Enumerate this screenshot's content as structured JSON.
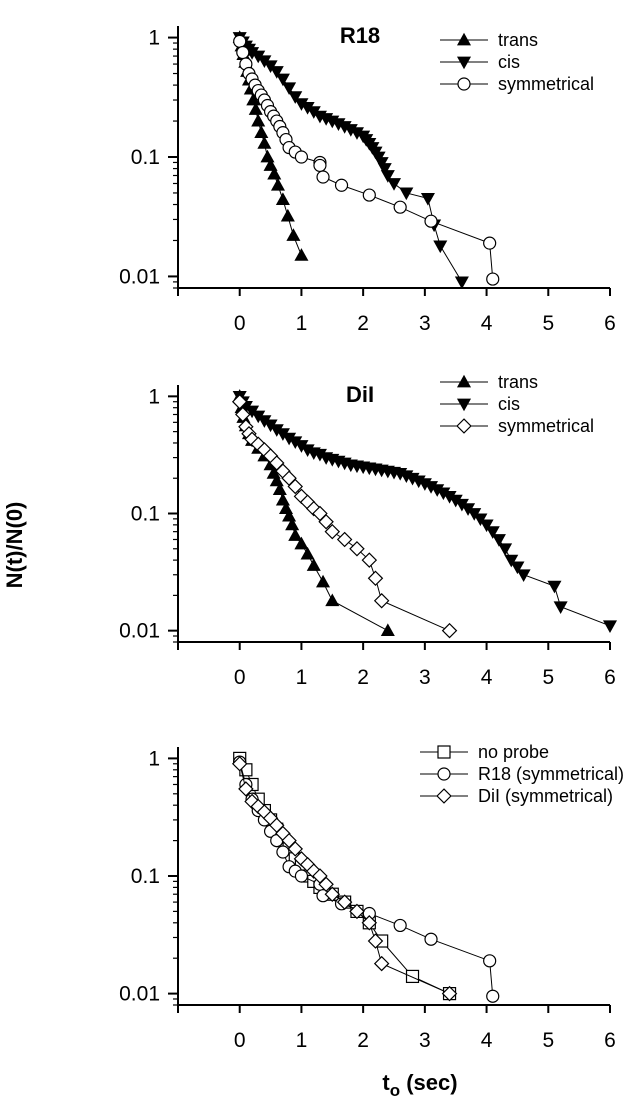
{
  "figure": {
    "ylabel": "N(t)/N(0)",
    "xlabel_main": "t",
    "xlabel_sub": "o",
    "xlabel_unit": " (sec)"
  },
  "chart_data": [
    {
      "type": "scatter",
      "panel_label": "R18",
      "ylabel": "N(t)/N(0)",
      "xlim": [
        -1,
        6
      ],
      "ylim": [
        0.008,
        1.25
      ],
      "yscale": "log",
      "x_ticks": [
        "0",
        "1",
        "2",
        "3",
        "4",
        "5",
        "6"
      ],
      "y_ticks": [
        "1",
        "0.1",
        "0.01"
      ],
      "grid": false,
      "legend": "top-right",
      "series": [
        {
          "name": "trans",
          "marker": "triangle-up",
          "color": "#000000",
          "points": [
            [
              0,
              1.0
            ],
            [
              0.03,
              0.85
            ],
            [
              0.06,
              0.72
            ],
            [
              0.09,
              0.62
            ],
            [
              0.12,
              0.52
            ],
            [
              0.15,
              0.44
            ],
            [
              0.18,
              0.37
            ],
            [
              0.22,
              0.3
            ],
            [
              0.26,
              0.25
            ],
            [
              0.3,
              0.2
            ],
            [
              0.35,
              0.16
            ],
            [
              0.4,
              0.13
            ],
            [
              0.45,
              0.1
            ],
            [
              0.5,
              0.085
            ],
            [
              0.56,
              0.072
            ],
            [
              0.62,
              0.058
            ],
            [
              0.7,
              0.044
            ],
            [
              0.78,
              0.032
            ],
            [
              0.87,
              0.022
            ],
            [
              1.0,
              0.015
            ]
          ]
        },
        {
          "name": "cis",
          "marker": "triangle-down",
          "color": "#000000",
          "points": [
            [
              0,
              1.0
            ],
            [
              0.05,
              0.92
            ],
            [
              0.1,
              0.85
            ],
            [
              0.15,
              0.8
            ],
            [
              0.2,
              0.75
            ],
            [
              0.3,
              0.7
            ],
            [
              0.4,
              0.64
            ],
            [
              0.5,
              0.58
            ],
            [
              0.6,
              0.52
            ],
            [
              0.7,
              0.45
            ],
            [
              0.8,
              0.38
            ],
            [
              0.9,
              0.32
            ],
            [
              1.0,
              0.28
            ],
            [
              1.1,
              0.26
            ],
            [
              1.2,
              0.24
            ],
            [
              1.3,
              0.22
            ],
            [
              1.4,
              0.21
            ],
            [
              1.5,
              0.2
            ],
            [
              1.6,
              0.19
            ],
            [
              1.7,
              0.18
            ],
            [
              1.8,
              0.17
            ],
            [
              1.9,
              0.16
            ],
            [
              2.0,
              0.15
            ],
            [
              2.05,
              0.14
            ],
            [
              2.1,
              0.13
            ],
            [
              2.15,
              0.12
            ],
            [
              2.2,
              0.11
            ],
            [
              2.25,
              0.1
            ],
            [
              2.3,
              0.09
            ],
            [
              2.35,
              0.08
            ],
            [
              2.4,
              0.07
            ],
            [
              2.5,
              0.06
            ],
            [
              2.7,
              0.05
            ],
            [
              3.05,
              0.045
            ],
            [
              3.15,
              0.027
            ],
            [
              3.25,
              0.018
            ],
            [
              3.6,
              0.009
            ]
          ]
        },
        {
          "name": "symmetrical",
          "marker": "circle-open",
          "color": "#000000",
          "points": [
            [
              0,
              0.93
            ],
            [
              0.05,
              0.75
            ],
            [
              0.1,
              0.6
            ],
            [
              0.15,
              0.5
            ],
            [
              0.2,
              0.45
            ],
            [
              0.25,
              0.4
            ],
            [
              0.3,
              0.36
            ],
            [
              0.35,
              0.33
            ],
            [
              0.4,
              0.3
            ],
            [
              0.45,
              0.27
            ],
            [
              0.5,
              0.24
            ],
            [
              0.55,
              0.22
            ],
            [
              0.6,
              0.2
            ],
            [
              0.65,
              0.18
            ],
            [
              0.7,
              0.16
            ],
            [
              0.75,
              0.14
            ],
            [
              0.8,
              0.12
            ],
            [
              0.9,
              0.11
            ],
            [
              1.0,
              0.1
            ],
            [
              1.3,
              0.09
            ],
            [
              1.3,
              0.085
            ],
            [
              1.35,
              0.068
            ],
            [
              1.65,
              0.058
            ],
            [
              2.1,
              0.048
            ],
            [
              2.6,
              0.038
            ],
            [
              3.1,
              0.029
            ],
            [
              4.05,
              0.019
            ],
            [
              4.1,
              0.0095
            ]
          ]
        }
      ]
    },
    {
      "type": "scatter",
      "panel_label": "DiI",
      "ylabel": "N(t)/N(0)",
      "xlim": [
        -1,
        6
      ],
      "ylim": [
        0.008,
        1.25
      ],
      "yscale": "log",
      "x_ticks": [
        "0",
        "1",
        "2",
        "3",
        "4",
        "5",
        "6"
      ],
      "y_ticks": [
        "1",
        "0.1",
        "0.01"
      ],
      "grid": false,
      "legend": "top-right",
      "series": [
        {
          "name": "trans",
          "marker": "triangle-up",
          "color": "#000000",
          "points": [
            [
              0,
              1.0
            ],
            [
              0.03,
              0.8
            ],
            [
              0.06,
              0.66
            ],
            [
              0.1,
              0.56
            ],
            [
              0.15,
              0.48
            ],
            [
              0.2,
              0.42
            ],
            [
              0.3,
              0.36
            ],
            [
              0.4,
              0.31
            ],
            [
              0.5,
              0.26
            ],
            [
              0.55,
              0.22
            ],
            [
              0.6,
              0.19
            ],
            [
              0.65,
              0.16
            ],
            [
              0.7,
              0.13
            ],
            [
              0.75,
              0.11
            ],
            [
              0.8,
              0.095
            ],
            [
              0.85,
              0.08
            ],
            [
              0.9,
              0.065
            ],
            [
              1.0,
              0.055
            ],
            [
              1.1,
              0.045
            ],
            [
              1.2,
              0.036
            ],
            [
              1.35,
              0.026
            ],
            [
              1.5,
              0.018
            ],
            [
              2.4,
              0.01
            ]
          ]
        },
        {
          "name": "cis",
          "marker": "triangle-down",
          "color": "#000000",
          "points": [
            [
              0,
              1.0
            ],
            [
              0.05,
              0.9
            ],
            [
              0.1,
              0.82
            ],
            [
              0.2,
              0.75
            ],
            [
              0.3,
              0.68
            ],
            [
              0.4,
              0.62
            ],
            [
              0.5,
              0.57
            ],
            [
              0.6,
              0.52
            ],
            [
              0.7,
              0.48
            ],
            [
              0.8,
              0.44
            ],
            [
              0.9,
              0.41
            ],
            [
              1.0,
              0.38
            ],
            [
              1.1,
              0.35
            ],
            [
              1.2,
              0.33
            ],
            [
              1.3,
              0.32
            ],
            [
              1.4,
              0.3
            ],
            [
              1.5,
              0.29
            ],
            [
              1.6,
              0.28
            ],
            [
              1.7,
              0.27
            ],
            [
              1.8,
              0.26
            ],
            [
              1.9,
              0.255
            ],
            [
              2.0,
              0.25
            ],
            [
              2.1,
              0.245
            ],
            [
              2.2,
              0.24
            ],
            [
              2.3,
              0.235
            ],
            [
              2.4,
              0.23
            ],
            [
              2.5,
              0.225
            ],
            [
              2.6,
              0.22
            ],
            [
              2.7,
              0.21
            ],
            [
              2.8,
              0.2
            ],
            [
              2.9,
              0.19
            ],
            [
              3.0,
              0.18
            ],
            [
              3.1,
              0.17
            ],
            [
              3.2,
              0.16
            ],
            [
              3.3,
              0.15
            ],
            [
              3.4,
              0.14
            ],
            [
              3.5,
              0.13
            ],
            [
              3.6,
              0.12
            ],
            [
              3.7,
              0.11
            ],
            [
              3.8,
              0.1
            ],
            [
              3.9,
              0.09
            ],
            [
              4.0,
              0.08
            ],
            [
              4.1,
              0.07
            ],
            [
              4.2,
              0.06
            ],
            [
              4.3,
              0.05
            ],
            [
              4.4,
              0.04
            ],
            [
              4.5,
              0.035
            ],
            [
              4.6,
              0.03
            ],
            [
              5.1,
              0.024
            ],
            [
              5.2,
              0.016
            ],
            [
              6.0,
              0.011
            ]
          ]
        },
        {
          "name": "symmetrical",
          "marker": "diamond-open",
          "color": "#000000",
          "points": [
            [
              0,
              0.9
            ],
            [
              0.05,
              0.7
            ],
            [
              0.1,
              0.55
            ],
            [
              0.15,
              0.48
            ],
            [
              0.2,
              0.43
            ],
            [
              0.3,
              0.39
            ],
            [
              0.4,
              0.35
            ],
            [
              0.5,
              0.31
            ],
            [
              0.6,
              0.27
            ],
            [
              0.7,
              0.23
            ],
            [
              0.8,
              0.2
            ],
            [
              0.9,
              0.17
            ],
            [
              1.0,
              0.14
            ],
            [
              1.1,
              0.125
            ],
            [
              1.2,
              0.11
            ],
            [
              1.3,
              0.1
            ],
            [
              1.4,
              0.085
            ],
            [
              1.5,
              0.07
            ],
            [
              1.7,
              0.06
            ],
            [
              1.9,
              0.05
            ],
            [
              2.1,
              0.04
            ],
            [
              2.2,
              0.028
            ],
            [
              2.3,
              0.018
            ],
            [
              3.4,
              0.01
            ]
          ]
        }
      ]
    },
    {
      "type": "scatter",
      "panel_label": "",
      "ylabel": "N(t)/N(0)",
      "xlabel": "to (sec)",
      "xlim": [
        -1,
        6
      ],
      "ylim": [
        0.008,
        1.25
      ],
      "yscale": "log",
      "x_ticks": [
        "0",
        "1",
        "2",
        "3",
        "4",
        "5",
        "6"
      ],
      "y_ticks": [
        "1",
        "0.1",
        "0.01"
      ],
      "grid": false,
      "legend": "top-right",
      "series": [
        {
          "name": "no probe",
          "marker": "square-open",
          "color": "#000000",
          "points": [
            [
              0,
              1.0
            ],
            [
              0.1,
              0.8
            ],
            [
              0.2,
              0.6
            ],
            [
              0.3,
              0.45
            ],
            [
              0.4,
              0.36
            ],
            [
              0.5,
              0.3
            ],
            [
              0.6,
              0.25
            ],
            [
              0.7,
              0.2
            ],
            [
              0.8,
              0.17
            ],
            [
              0.9,
              0.14
            ],
            [
              1.0,
              0.12
            ],
            [
              1.1,
              0.1
            ],
            [
              1.2,
              0.09
            ],
            [
              1.3,
              0.08
            ],
            [
              1.5,
              0.07
            ],
            [
              1.7,
              0.06
            ],
            [
              1.9,
              0.05
            ],
            [
              2.1,
              0.04
            ],
            [
              2.3,
              0.028
            ],
            [
              2.8,
              0.014
            ],
            [
              3.4,
              0.01
            ]
          ]
        },
        {
          "name": "R18 (symmetrical)",
          "marker": "circle-open",
          "color": "#000000",
          "points": [
            [
              0,
              0.93
            ],
            [
              0.1,
              0.6
            ],
            [
              0.2,
              0.45
            ],
            [
              0.3,
              0.36
            ],
            [
              0.4,
              0.3
            ],
            [
              0.5,
              0.24
            ],
            [
              0.6,
              0.2
            ],
            [
              0.7,
              0.16
            ],
            [
              0.8,
              0.12
            ],
            [
              0.9,
              0.11
            ],
            [
              1.0,
              0.1
            ],
            [
              1.3,
              0.085
            ],
            [
              1.35,
              0.068
            ],
            [
              1.65,
              0.058
            ],
            [
              2.1,
              0.048
            ],
            [
              2.6,
              0.038
            ],
            [
              3.1,
              0.029
            ],
            [
              4.05,
              0.019
            ],
            [
              4.1,
              0.0095
            ]
          ]
        },
        {
          "name": "DiI (symmetrical)",
          "marker": "diamond-open",
          "color": "#000000",
          "points": [
            [
              0,
              0.9
            ],
            [
              0.1,
              0.55
            ],
            [
              0.2,
              0.43
            ],
            [
              0.3,
              0.39
            ],
            [
              0.4,
              0.35
            ],
            [
              0.5,
              0.31
            ],
            [
              0.6,
              0.27
            ],
            [
              0.7,
              0.23
            ],
            [
              0.8,
              0.2
            ],
            [
              0.9,
              0.17
            ],
            [
              1.0,
              0.14
            ],
            [
              1.1,
              0.125
            ],
            [
              1.2,
              0.11
            ],
            [
              1.3,
              0.1
            ],
            [
              1.4,
              0.085
            ],
            [
              1.5,
              0.07
            ],
            [
              1.7,
              0.06
            ],
            [
              1.9,
              0.05
            ],
            [
              2.1,
              0.04
            ],
            [
              2.2,
              0.028
            ],
            [
              2.3,
              0.018
            ],
            [
              3.4,
              0.01
            ]
          ]
        }
      ]
    }
  ]
}
